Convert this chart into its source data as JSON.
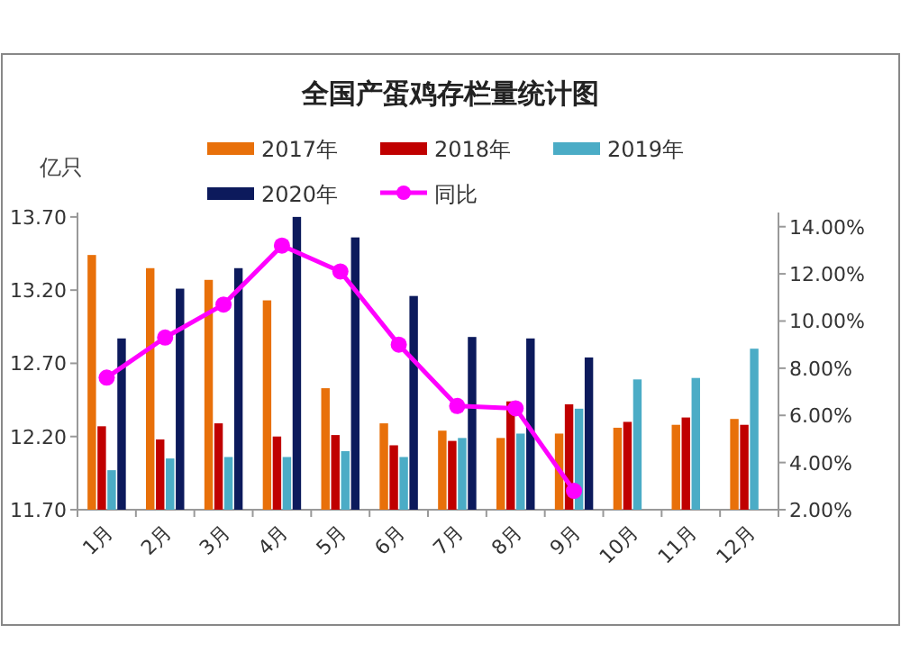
{
  "chart_data": {
    "type": "bar",
    "title": "全国产蛋鸡存栏量统计图",
    "ylabel": "亿只",
    "categories": [
      "1月",
      "2月",
      "3月",
      "4月",
      "5月",
      "6月",
      "7月",
      "8月",
      "9月",
      "10月",
      "11月",
      "12月"
    ],
    "ylim": [
      11.7,
      13.73
    ],
    "yticks": [
      {
        "value": 11.7,
        "label": "11.70"
      },
      {
        "value": 12.2,
        "label": "12.20"
      },
      {
        "value": 12.7,
        "label": "12.70"
      },
      {
        "value": 13.2,
        "label": "13.20"
      },
      {
        "value": 13.7,
        "label": "13.70"
      }
    ],
    "y2lim": [
      2,
      14.6
    ],
    "y2ticks": [
      {
        "value": 2,
        "label": "2.00%"
      },
      {
        "value": 4,
        "label": "4.00%"
      },
      {
        "value": 6,
        "label": "6.00%"
      },
      {
        "value": 8,
        "label": "8.00%"
      },
      {
        "value": 10,
        "label": "10.00%"
      },
      {
        "value": 12,
        "label": "12.00%"
      },
      {
        "value": 14,
        "label": "14.00%"
      }
    ],
    "legend": "top",
    "grid": false,
    "series": [
      {
        "name": "2017年",
        "color": "#e8700a",
        "values": [
          13.44,
          13.35,
          13.27,
          13.13,
          12.53,
          12.29,
          12.24,
          12.19,
          12.22,
          12.26,
          12.28,
          12.32
        ]
      },
      {
        "name": "2018年",
        "color": "#c00000",
        "values": [
          12.27,
          12.18,
          12.29,
          12.2,
          12.21,
          12.14,
          12.17,
          12.44,
          12.42,
          12.3,
          12.33,
          12.28
        ]
      },
      {
        "name": "2019年",
        "color": "#4bacc6",
        "values": [
          11.97,
          12.05,
          12.06,
          12.06,
          12.1,
          12.06,
          12.19,
          12.22,
          12.39,
          12.59,
          12.6,
          12.8
        ]
      },
      {
        "name": "2020年",
        "color": "#0c1a5c",
        "values": [
          12.87,
          13.21,
          13.35,
          13.7,
          13.56,
          13.16,
          12.88,
          12.87,
          12.74,
          null,
          null,
          null
        ]
      },
      {
        "name": "同比",
        "type": "line",
        "axis": "y2",
        "marker": "circle",
        "color": "#ff00ff",
        "values": [
          7.6,
          9.3,
          10.7,
          13.2,
          12.1,
          9.0,
          6.4,
          6.3,
          2.8,
          null,
          null,
          null
        ]
      }
    ]
  }
}
